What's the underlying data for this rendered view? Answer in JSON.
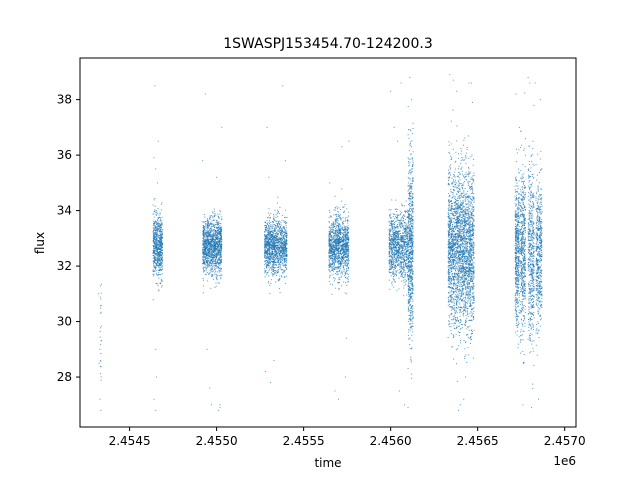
{
  "chart_data": {
    "type": "scatter",
    "title": "1SWASPJ153454.70-124200.3",
    "xlabel": "time",
    "ylabel": "flux",
    "x_offset_label": "1e6",
    "xlim": [
      2454215,
      2457065
    ],
    "ylim": [
      26.2,
      39.5
    ],
    "x_ticks": [
      2454500,
      2455000,
      2455500,
      2456000,
      2456500,
      2457000
    ],
    "x_tick_labels": [
      "2.4545",
      "2.4550",
      "2.4555",
      "2.4560",
      "2.4565",
      "2.4570"
    ],
    "y_ticks": [
      28,
      30,
      32,
      34,
      36,
      38
    ],
    "y_tick_labels": [
      "28",
      "30",
      "32",
      "34",
      "36",
      "38"
    ],
    "marker_color": "#1f77b4",
    "grid": false,
    "series": [
      {
        "clusters": [
          {
            "x_start": 2454330,
            "x_end": 2454338,
            "y_center": 29.8,
            "spread": 1.2,
            "n": 25
          },
          {
            "x_start": 2454635,
            "x_end": 2454690,
            "y_center": 32.7,
            "spread": 0.55,
            "n": 700
          },
          {
            "x_start": 2454920,
            "x_end": 2455030,
            "y_center": 32.7,
            "spread": 0.5,
            "n": 1300
          },
          {
            "x_start": 2455275,
            "x_end": 2455405,
            "y_center": 32.7,
            "spread": 0.5,
            "n": 1300
          },
          {
            "x_start": 2455645,
            "x_end": 2455760,
            "y_center": 32.7,
            "spread": 0.55,
            "n": 1200
          },
          {
            "x_start": 2455990,
            "x_end": 2456100,
            "y_center": 32.7,
            "spread": 0.6,
            "n": 1000
          },
          {
            "x_start": 2456100,
            "x_end": 2456130,
            "y_center": 32.7,
            "spread": 1.7,
            "n": 700
          },
          {
            "x_start": 2456330,
            "x_end": 2456480,
            "y_center": 32.6,
            "spread": 1.4,
            "n": 2600
          },
          {
            "x_start": 2456715,
            "x_end": 2456740,
            "y_center": 32.5,
            "spread": 1.3,
            "n": 500
          },
          {
            "x_start": 2456745,
            "x_end": 2456775,
            "y_center": 32.5,
            "spread": 1.5,
            "n": 500
          },
          {
            "x_start": 2456790,
            "x_end": 2456825,
            "y_center": 32.5,
            "spread": 1.6,
            "n": 500
          },
          {
            "x_start": 2456835,
            "x_end": 2456870,
            "y_center": 32.5,
            "spread": 1.3,
            "n": 500
          }
        ],
        "outliers": [
          [
            2454320,
            31.0
          ],
          [
            2454325,
            28.5
          ],
          [
            2454330,
            27.2
          ],
          [
            2454335,
            26.8
          ],
          [
            2454330,
            29.0
          ],
          [
            2454640,
            35.9
          ],
          [
            2454645,
            38.5
          ],
          [
            2454650,
            35.5
          ],
          [
            2454655,
            28.0
          ],
          [
            2454640,
            27.2
          ],
          [
            2454650,
            26.8
          ],
          [
            2454660,
            35.0
          ],
          [
            2454650,
            29.0
          ],
          [
            2454665,
            36.5
          ],
          [
            2454920,
            35.8
          ],
          [
            2454935,
            38.2
          ],
          [
            2454945,
            29.0
          ],
          [
            2454960,
            27.6
          ],
          [
            2454970,
            27.0
          ],
          [
            2455010,
            26.8
          ],
          [
            2455020,
            27.0
          ],
          [
            2455020,
            26.9
          ],
          [
            2455000,
            35.2
          ],
          [
            2455030,
            37.0
          ],
          [
            2455280,
            28.2
          ],
          [
            2455290,
            37.0
          ],
          [
            2455300,
            35.2
          ],
          [
            2455310,
            27.8
          ],
          [
            2455330,
            28.6
          ],
          [
            2455380,
            38.5
          ],
          [
            2455395,
            35.8
          ],
          [
            2455650,
            35.0
          ],
          [
            2455700,
            27.2
          ],
          [
            2455720,
            36.3
          ],
          [
            2455740,
            28.0
          ],
          [
            2455745,
            29.4
          ],
          [
            2455760,
            36.5
          ],
          [
            2455680,
            27.5
          ],
          [
            2456000,
            38.3
          ],
          [
            2456020,
            37.0
          ],
          [
            2456040,
            36.5
          ],
          [
            2456060,
            38.6
          ],
          [
            2456080,
            27.0
          ],
          [
            2456100,
            26.9
          ],
          [
            2456110,
            38.8
          ],
          [
            2456120,
            38.0
          ],
          [
            2456050,
            27.5
          ],
          [
            2456340,
            38.9
          ],
          [
            2456360,
            38.7
          ],
          [
            2456380,
            38.3
          ],
          [
            2456400,
            27.0
          ],
          [
            2456420,
            27.2
          ],
          [
            2456450,
            38.6
          ],
          [
            2456470,
            37.9
          ],
          [
            2456390,
            26.8
          ],
          [
            2456430,
            28.0
          ],
          [
            2456720,
            38.2
          ],
          [
            2456740,
            37.0
          ],
          [
            2456760,
            27.0
          ],
          [
            2456790,
            38.8
          ],
          [
            2456800,
            38.6
          ],
          [
            2456810,
            26.9
          ],
          [
            2456830,
            38.6
          ],
          [
            2456850,
            27.2
          ],
          [
            2456860,
            38.0
          ]
        ]
      }
    ]
  }
}
